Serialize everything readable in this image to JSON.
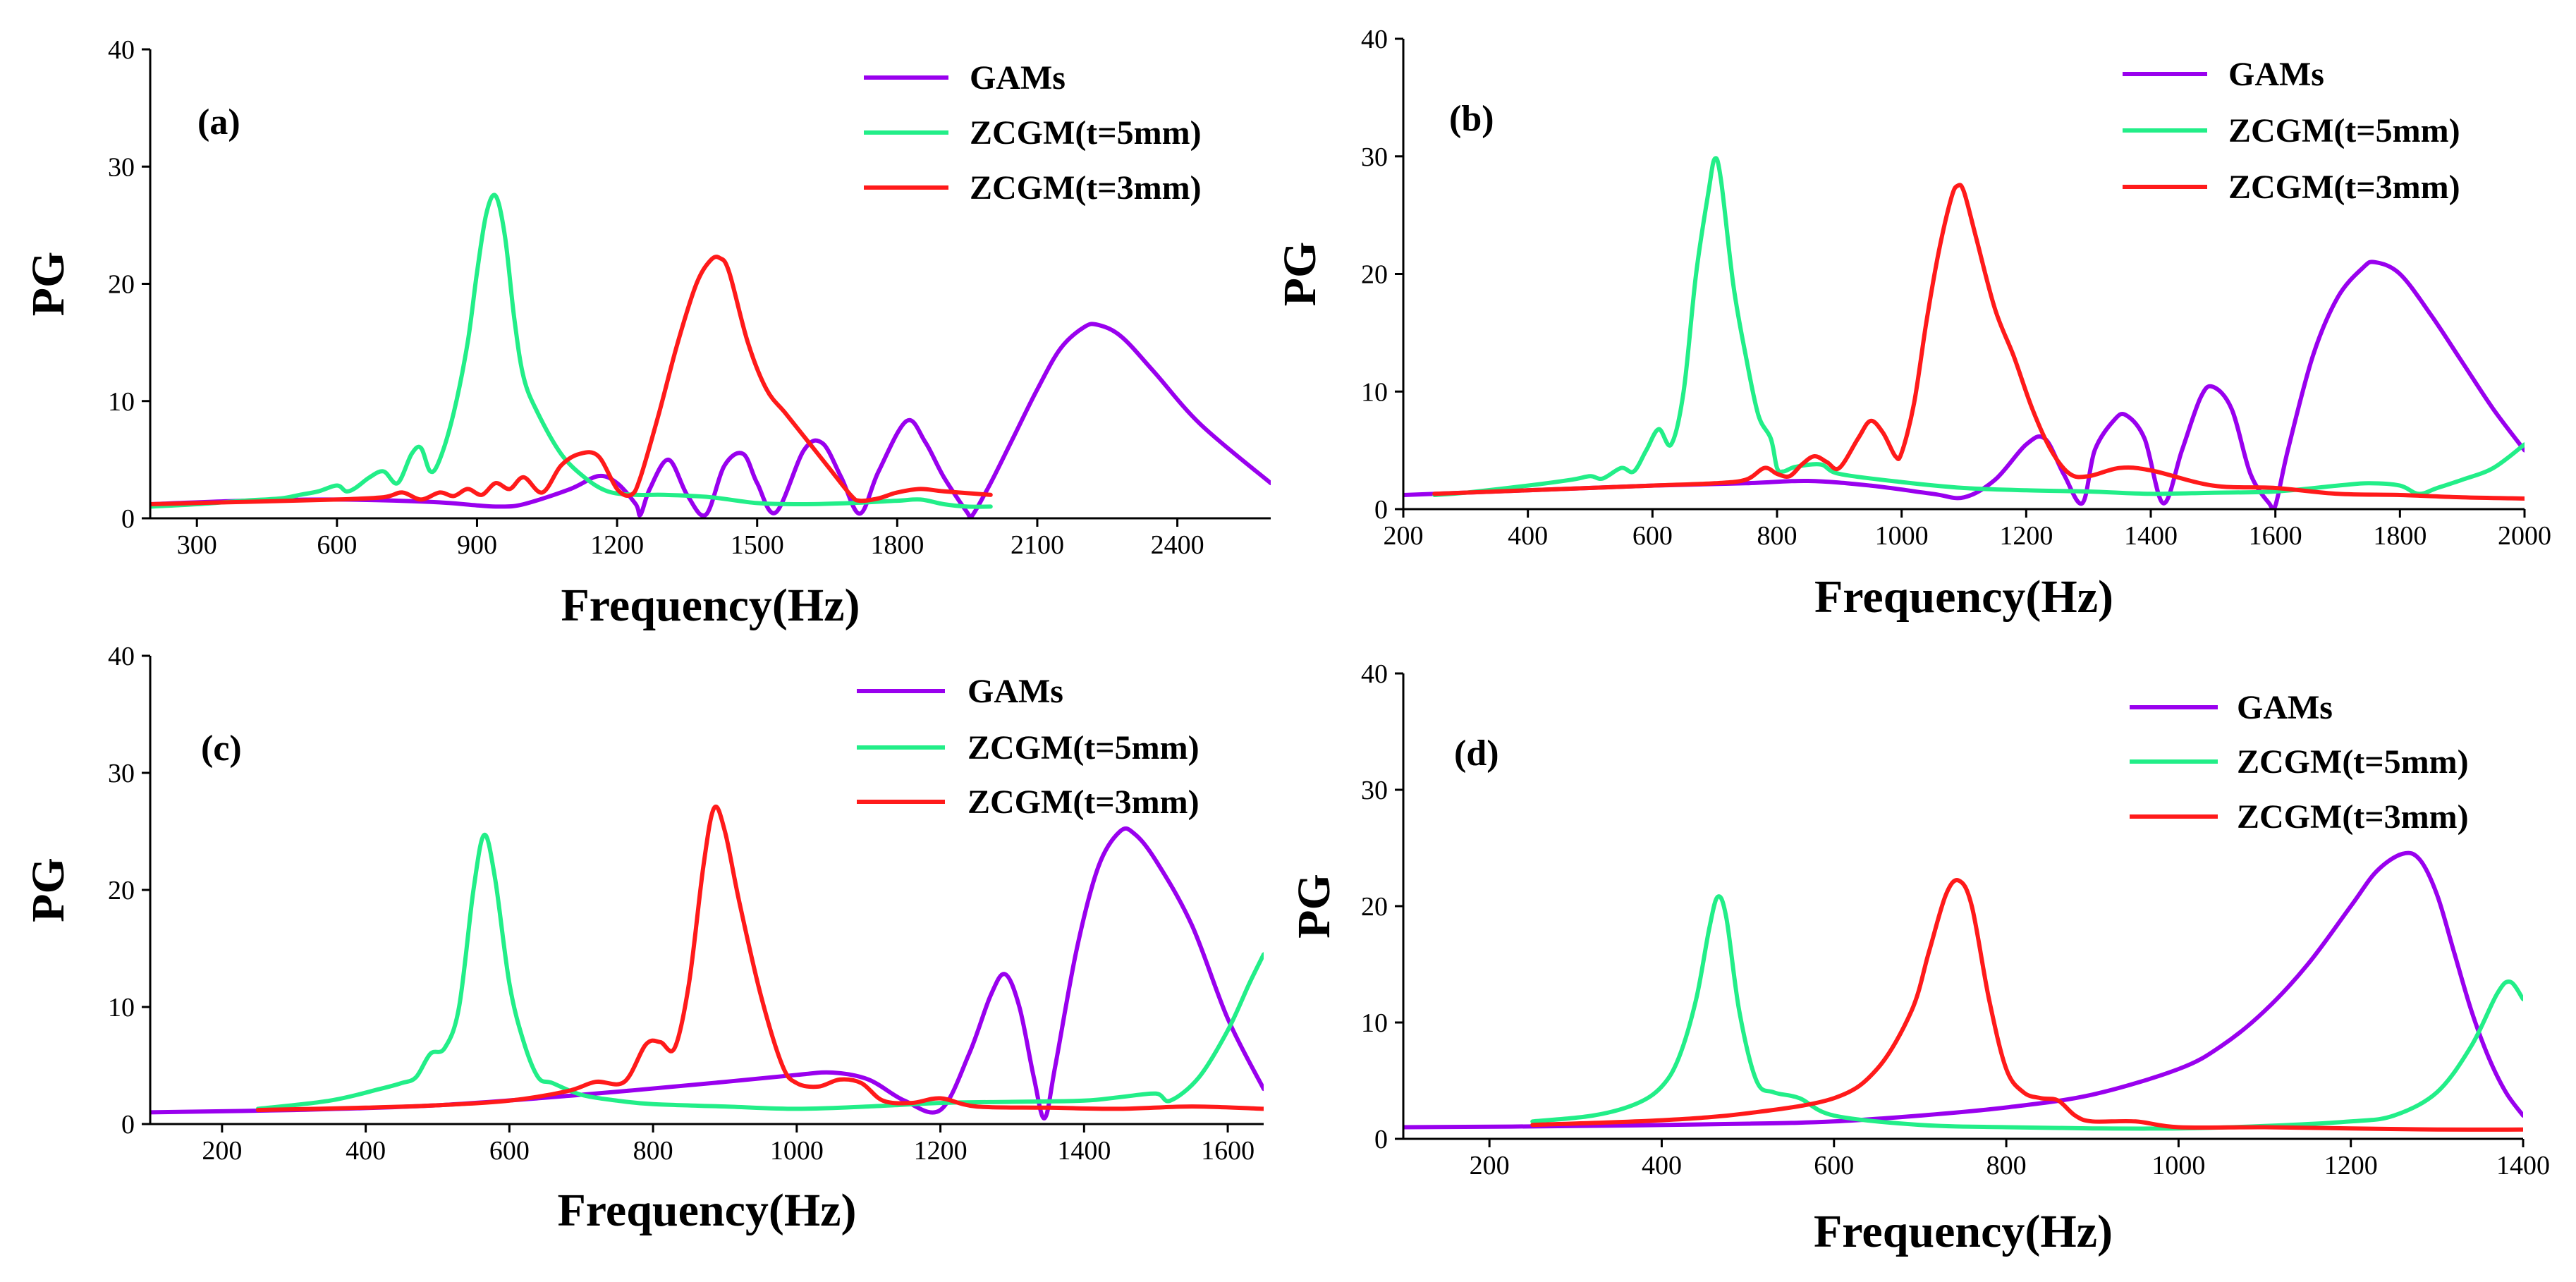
{
  "colors": {
    "gams": "#9900ee",
    "zcgm5": "#22ee88",
    "zcgm3": "#ff1a1a"
  },
  "chart_data": [
    {
      "type": "line",
      "panel": "(a)",
      "xlabel": "Frequency(Hz)",
      "ylabel": "PG",
      "xlim": [
        200,
        2600
      ],
      "ylim": [
        0,
        40
      ],
      "xticks": [
        300,
        600,
        900,
        1200,
        1500,
        1800,
        2100,
        2400
      ],
      "yticks": [
        0,
        10,
        20,
        30,
        40
      ],
      "legend": [
        "GAMs",
        "ZCGM(t=5mm)",
        "ZCGM(t=3mm)"
      ],
      "series": [
        {
          "name": "GAMs",
          "color_key": "gams",
          "x": [
            200,
            400,
            600,
            800,
            900,
            950,
            1000,
            1100,
            1160,
            1200,
            1240,
            1250,
            1270,
            1310,
            1350,
            1390,
            1430,
            1470,
            1500,
            1540,
            1600,
            1640,
            1680,
            1720,
            1760,
            1820,
            1860,
            1900,
            1950,
            1960,
            2000,
            2050,
            2100,
            2150,
            2200,
            2230,
            2280,
            2350,
            2450,
            2600
          ],
          "y": [
            1.2,
            1.5,
            1.6,
            1.4,
            1.1,
            1.0,
            1.2,
            2.5,
            3.6,
            3.0,
            1.2,
            0.3,
            2.5,
            5.0,
            2.0,
            0.3,
            4.5,
            5.5,
            3.0,
            0.5,
            5.8,
            6.4,
            3.5,
            0.4,
            4.0,
            8.3,
            6.5,
            3.5,
            0.5,
            0.2,
            3.0,
            7.0,
            11.0,
            14.5,
            16.3,
            16.5,
            15.5,
            12.5,
            8.0,
            3.0
          ]
        },
        {
          "name": "ZCGM(t=5mm)",
          "color_key": "zcgm5",
          "x": [
            200,
            300,
            400,
            480,
            520,
            560,
            600,
            620,
            640,
            670,
            700,
            730,
            760,
            780,
            800,
            820,
            850,
            880,
            900,
            920,
            940,
            960,
            980,
            1000,
            1030,
            1080,
            1130,
            1180,
            1240,
            1300,
            1400,
            1500,
            1600,
            1700,
            1800,
            1850,
            1900,
            1950,
            2000
          ],
          "y": [
            1.0,
            1.2,
            1.5,
            1.7,
            2.0,
            2.3,
            2.8,
            2.3,
            2.6,
            3.5,
            4.0,
            3.0,
            5.5,
            6.0,
            4.0,
            5.0,
            9.0,
            15.0,
            21.0,
            26.0,
            27.5,
            24.0,
            17.0,
            12.0,
            9.0,
            5.5,
            3.5,
            2.3,
            2.0,
            2.0,
            1.8,
            1.3,
            1.2,
            1.3,
            1.5,
            1.6,
            1.2,
            1.0,
            1.0
          ]
        },
        {
          "name": "ZCGM(t=3mm)",
          "color_key": "zcgm3",
          "x": [
            200,
            400,
            600,
            700,
            740,
            780,
            820,
            850,
            880,
            910,
            940,
            970,
            1000,
            1040,
            1080,
            1120,
            1160,
            1200,
            1230,
            1250,
            1290,
            1330,
            1370,
            1400,
            1420,
            1440,
            1480,
            1520,
            1560,
            1600,
            1650,
            1700,
            1720,
            1760,
            1800,
            1850,
            1900,
            2000
          ],
          "y": [
            1.2,
            1.4,
            1.6,
            1.8,
            2.2,
            1.6,
            2.2,
            1.9,
            2.5,
            2.0,
            3.0,
            2.5,
            3.5,
            2.2,
            4.5,
            5.5,
            5.3,
            2.5,
            2.0,
            3.5,
            9.0,
            15.0,
            20.0,
            22.0,
            22.2,
            21.0,
            15.0,
            11.0,
            9.0,
            7.0,
            4.5,
            2.0,
            1.5,
            1.7,
            2.2,
            2.5,
            2.3,
            2.0
          ]
        }
      ]
    },
    {
      "type": "line",
      "panel": "(b)",
      "xlabel": "Frequency(Hz)",
      "ylabel": "PG",
      "xlim": [
        200,
        2000
      ],
      "ylim": [
        0,
        40
      ],
      "xticks": [
        200,
        400,
        600,
        800,
        1000,
        1200,
        1400,
        1600,
        1800,
        2000
      ],
      "yticks": [
        0,
        10,
        20,
        30,
        40
      ],
      "legend": [
        "GAMs",
        "ZCGM(t=5mm)",
        "ZCGM(t=3mm)"
      ],
      "series": [
        {
          "name": "GAMs",
          "color_key": "gams",
          "x": [
            200,
            400,
            600,
            750,
            850,
            950,
            1050,
            1100,
            1150,
            1200,
            1230,
            1260,
            1290,
            1310,
            1340,
            1360,
            1390,
            1420,
            1450,
            1480,
            1500,
            1530,
            1560,
            1590,
            1600,
            1620,
            1660,
            1700,
            1740,
            1760,
            1800,
            1850,
            1900,
            1950,
            2000
          ],
          "y": [
            1.2,
            1.6,
            2.0,
            2.2,
            2.4,
            2.0,
            1.3,
            1.0,
            2.5,
            5.5,
            6.0,
            3.0,
            0.5,
            5.0,
            7.5,
            8.0,
            6.0,
            0.5,
            5.0,
            9.5,
            10.4,
            8.5,
            3.0,
            0.5,
            0.3,
            5.0,
            13.0,
            18.0,
            20.5,
            21.0,
            20.0,
            16.5,
            12.5,
            8.5,
            5.0
          ]
        },
        {
          "name": "ZCGM(t=5mm)",
          "color_key": "zcgm5",
          "x": [
            250,
            300,
            400,
            470,
            500,
            520,
            550,
            570,
            590,
            610,
            630,
            650,
            670,
            690,
            700,
            710,
            730,
            750,
            770,
            790,
            800,
            810,
            830,
            870,
            900,
            1000,
            1100,
            1200,
            1300,
            1400,
            1500,
            1600,
            1700,
            1750,
            1800,
            1830,
            1860,
            1900,
            1950,
            2000
          ],
          "y": [
            1.2,
            1.4,
            2.0,
            2.5,
            2.8,
            2.6,
            3.5,
            3.2,
            5.0,
            6.8,
            5.5,
            10.0,
            20.0,
            27.0,
            29.8,
            28.0,
            19.0,
            13.0,
            8.0,
            6.0,
            3.5,
            3.2,
            3.6,
            3.8,
            3.0,
            2.3,
            1.8,
            1.6,
            1.5,
            1.3,
            1.4,
            1.5,
            2.0,
            2.2,
            2.0,
            1.3,
            1.8,
            2.5,
            3.5,
            5.5
          ]
        },
        {
          "name": "ZCGM(t=3mm)",
          "color_key": "zcgm3",
          "x": [
            250,
            400,
            600,
            700,
            750,
            780,
            800,
            820,
            840,
            860,
            880,
            900,
            930,
            950,
            970,
            990,
            1000,
            1020,
            1040,
            1060,
            1080,
            1090,
            1100,
            1120,
            1150,
            1180,
            1210,
            1240,
            1270,
            1300,
            1350,
            1400,
            1500,
            1600,
            1700,
            1800,
            1900,
            2000
          ],
          "y": [
            1.3,
            1.6,
            2.0,
            2.2,
            2.5,
            3.5,
            3.0,
            2.8,
            3.8,
            4.5,
            4.0,
            3.5,
            6.0,
            7.5,
            6.5,
            4.5,
            4.8,
            9.0,
            16.0,
            22.0,
            26.5,
            27.5,
            27.0,
            23.0,
            17.0,
            13.0,
            8.5,
            5.0,
            3.0,
            2.8,
            3.5,
            3.3,
            2.0,
            1.8,
            1.3,
            1.2,
            1.0,
            0.9
          ]
        }
      ]
    },
    {
      "type": "line",
      "panel": "(c)",
      "xlabel": "Frequency(Hz)",
      "ylabel": "PG",
      "xlim": [
        100,
        1650
      ],
      "ylim": [
        0,
        40
      ],
      "xticks": [
        200,
        400,
        600,
        800,
        1000,
        1200,
        1400,
        1600
      ],
      "yticks": [
        0,
        10,
        20,
        30,
        40
      ],
      "legend": [
        "GAMs",
        "ZCGM(t=5mm)",
        "ZCGM(t=3mm)"
      ],
      "series": [
        {
          "name": "GAMs",
          "color_key": "gams",
          "x": [
            100,
            300,
            500,
            700,
            900,
            1000,
            1050,
            1100,
            1150,
            1200,
            1240,
            1270,
            1290,
            1310,
            1330,
            1345,
            1360,
            1390,
            1420,
            1450,
            1470,
            1500,
            1550,
            1600,
            1650
          ],
          "y": [
            1.0,
            1.2,
            1.6,
            2.5,
            3.6,
            4.2,
            4.4,
            3.8,
            2.0,
            1.2,
            6.0,
            11.0,
            12.8,
            10.0,
            4.0,
            0.5,
            5.0,
            15.0,
            22.0,
            25.0,
            24.8,
            22.5,
            17.0,
            9.0,
            3.0
          ]
        },
        {
          "name": "ZCGM(t=5mm)",
          "color_key": "zcgm5",
          "x": [
            250,
            350,
            420,
            450,
            470,
            490,
            510,
            530,
            550,
            565,
            580,
            600,
            620,
            640,
            660,
            700,
            750,
            800,
            900,
            1000,
            1100,
            1200,
            1300,
            1400,
            1450,
            1500,
            1520,
            1560,
            1600,
            1630,
            1650
          ],
          "y": [
            1.3,
            2.0,
            3.0,
            3.5,
            4.0,
            6.0,
            6.5,
            10.0,
            20.0,
            24.7,
            21.0,
            12.0,
            7.0,
            4.0,
            3.5,
            2.5,
            2.0,
            1.7,
            1.5,
            1.3,
            1.5,
            1.8,
            1.9,
            2.0,
            2.3,
            2.6,
            2.0,
            4.0,
            8.0,
            12.0,
            14.5
          ]
        },
        {
          "name": "ZCGM(t=3mm)",
          "color_key": "zcgm3",
          "x": [
            250,
            400,
            500,
            600,
            680,
            720,
            760,
            790,
            810,
            830,
            850,
            870,
            885,
            900,
            920,
            950,
            980,
            1000,
            1030,
            1060,
            1090,
            1120,
            1160,
            1200,
            1250,
            1350,
            1450,
            1550,
            1650
          ],
          "y": [
            1.2,
            1.4,
            1.6,
            2.0,
            2.8,
            3.6,
            3.6,
            6.8,
            7.0,
            6.5,
            12.0,
            22.0,
            27.0,
            25.0,
            19.0,
            11.0,
            5.0,
            3.5,
            3.2,
            3.8,
            3.5,
            2.0,
            1.8,
            2.2,
            1.5,
            1.4,
            1.3,
            1.5,
            1.3
          ]
        }
      ]
    },
    {
      "type": "line",
      "panel": "(d)",
      "xlabel": "Frequency(Hz)",
      "ylabel": "PG",
      "xlim": [
        100,
        1400
      ],
      "ylim": [
        0,
        40
      ],
      "xticks": [
        200,
        400,
        600,
        800,
        1000,
        1200,
        1400
      ],
      "yticks": [
        0,
        10,
        20,
        30,
        40
      ],
      "legend": [
        "GAMs",
        "ZCGM(t=5mm)",
        "ZCGM(t=3mm)"
      ],
      "series": [
        {
          "name": "GAMs",
          "color_key": "gams",
          "x": [
            100,
            300,
            500,
            600,
            700,
            800,
            900,
            1000,
            1050,
            1100,
            1150,
            1200,
            1230,
            1260,
            1280,
            1300,
            1320,
            1340,
            1360,
            1380,
            1400
          ],
          "y": [
            1.0,
            1.1,
            1.3,
            1.5,
            2.0,
            2.7,
            3.8,
            6.0,
            8.0,
            11.0,
            15.0,
            20.0,
            23.0,
            24.5,
            24.0,
            21.0,
            16.0,
            11.0,
            7.0,
            4.0,
            2.0
          ]
        },
        {
          "name": "ZCGM(t=5mm)",
          "color_key": "zcgm5",
          "x": [
            250,
            320,
            370,
            400,
            420,
            440,
            455,
            465,
            475,
            490,
            510,
            530,
            560,
            600,
            700,
            800,
            900,
            1000,
            1100,
            1200,
            1250,
            1300,
            1340,
            1370,
            1385,
            1400
          ],
          "y": [
            1.5,
            2.0,
            3.0,
            4.5,
            7.0,
            12.0,
            18.0,
            20.8,
            19.0,
            11.0,
            5.0,
            4.0,
            3.5,
            2.0,
            1.2,
            1.0,
            0.9,
            0.9,
            1.1,
            1.5,
            2.0,
            4.0,
            8.0,
            12.5,
            13.5,
            12.0
          ]
        },
        {
          "name": "ZCGM(t=3mm)",
          "color_key": "zcgm3",
          "x": [
            250,
            400,
            500,
            600,
            650,
            690,
            710,
            730,
            745,
            760,
            780,
            800,
            820,
            840,
            860,
            880,
            900,
            950,
            1000,
            1100,
            1200,
            1300,
            1400
          ],
          "y": [
            1.2,
            1.6,
            2.2,
            3.5,
            6.0,
            11.0,
            16.0,
            21.0,
            22.2,
            20.0,
            12.0,
            6.0,
            4.0,
            3.5,
            3.3,
            2.0,
            1.5,
            1.5,
            1.0,
            1.0,
            0.9,
            0.8,
            0.8
          ]
        }
      ]
    }
  ]
}
